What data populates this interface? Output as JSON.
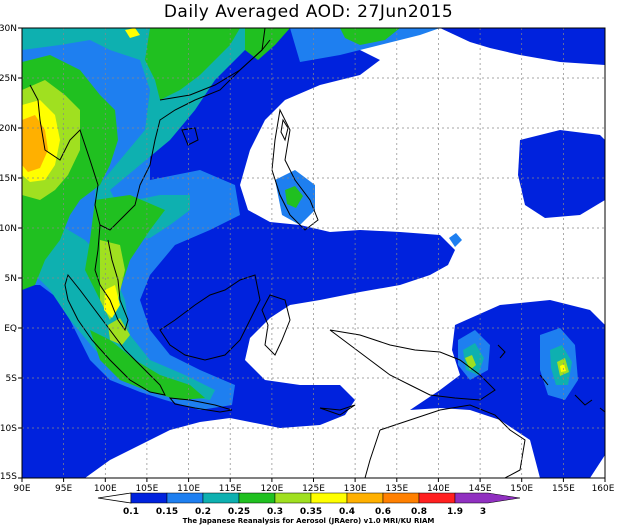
{
  "title": "Daily Averaged AOD: 27Jun2015",
  "credit": "The Japanese Reanalysis for Aerosol (JRAero) v1.0 MRI/KU RIAM",
  "map": {
    "x_ticks": [
      "90E",
      "95E",
      "100E",
      "105E",
      "110E",
      "115E",
      "120E",
      "125E",
      "130E",
      "135E",
      "140E",
      "145E",
      "150E",
      "155E",
      "160E"
    ],
    "y_ticks": [
      "30N",
      "25N",
      "20N",
      "15N",
      "10N",
      "5N",
      "EQ",
      "5S",
      "10S",
      "15S"
    ]
  },
  "colorbar": {
    "labels": [
      "0.1",
      "0.15",
      "0.2",
      "0.25",
      "0.3",
      "0.35",
      "0.4",
      "0.6",
      "0.8",
      "1.9",
      "3"
    ],
    "colors": [
      "#ffffff",
      "#0022dd",
      "#1e7ff0",
      "#0eb0b0",
      "#20c020",
      "#a0e020",
      "#ffff00",
      "#ffb000",
      "#ff8000",
      "#ff2020",
      "#9030c0"
    ]
  }
}
